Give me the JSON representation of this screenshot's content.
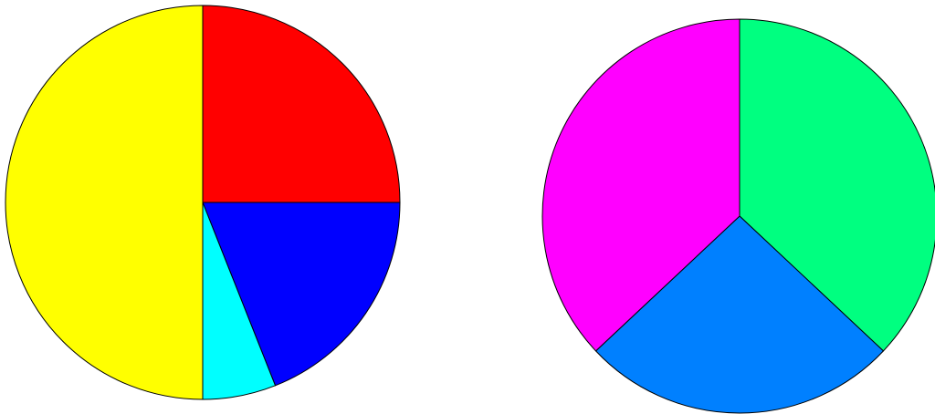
{
  "chart_data": [
    {
      "type": "pie",
      "values": [
        25,
        19,
        6,
        50
      ],
      "colors": [
        "#ff0000",
        "#0000ff",
        "#00ffff",
        "#ffff00"
      ]
    },
    {
      "type": "pie",
      "values": [
        37,
        26,
        37
      ],
      "colors": [
        "#00ff80",
        "#0080ff",
        "#ff00ff"
      ]
    }
  ]
}
